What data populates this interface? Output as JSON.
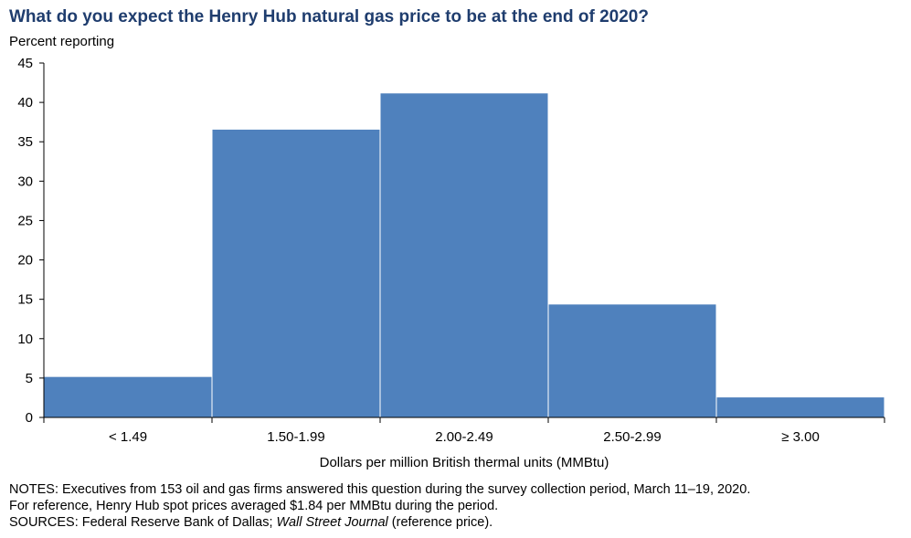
{
  "chart_data": {
    "type": "bar",
    "title": "What do you expect the Henry Hub natural gas price to be at the end of 2020?",
    "ylabel": "Percent reporting",
    "xlabel": "Dollars per million British thermal units (MMBtu)",
    "categories": [
      "< 1.49",
      "1.50-1.99",
      "2.00-2.49",
      "2.50-2.99",
      "≥ 3.00"
    ],
    "values": [
      5.2,
      36.6,
      41.2,
      14.4,
      2.6
    ],
    "ylim": [
      0,
      45
    ],
    "yticks": [
      "0",
      "5",
      "10",
      "15",
      "20",
      "25",
      "30",
      "35",
      "40",
      "45"
    ],
    "grid": false,
    "bar_color": "#4f81bd"
  },
  "notes": {
    "line1": "NOTES: Executives from 153 oil and gas firms answered this question during the survey collection period, March 11–19, 2020.",
    "line2": "For reference, Henry Hub spot prices averaged $1.84 per MMBtu during the period.",
    "line3_prefix": "SOURCES: Federal Reserve Bank of Dallas; ",
    "line3_italic": "Wall Street Journal",
    "line3_suffix": " (reference price)."
  },
  "colors": {
    "title": "#1f3d6e",
    "bar": "#4f81bd",
    "axis": "#000000"
  }
}
